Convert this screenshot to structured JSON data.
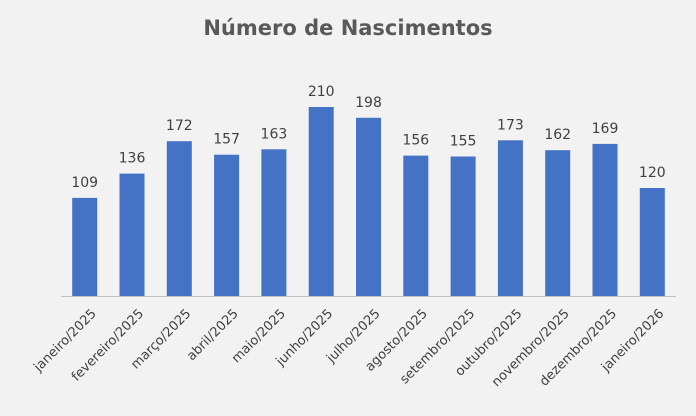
{
  "chart_data": {
    "type": "bar",
    "title": "Número de Nascimentos",
    "categories": [
      "janeiro/2025",
      "fevereiro/2025",
      "março/2025",
      "abril/2025",
      "maio/2025",
      "junho/2025",
      "julho/2025",
      "agosto/2025",
      "setembro/2025",
      "outubro/2025",
      "novembro/2025",
      "dezembro/2025",
      "janeiro/2026"
    ],
    "values": [
      109,
      136,
      172,
      157,
      163,
      210,
      198,
      156,
      155,
      173,
      162,
      169,
      120
    ],
    "xlabel": "",
    "ylabel": "",
    "ylim": [
      0,
      220
    ],
    "grid": false,
    "legend": "none",
    "data_labels": true,
    "bar_color": "#4472c4"
  }
}
